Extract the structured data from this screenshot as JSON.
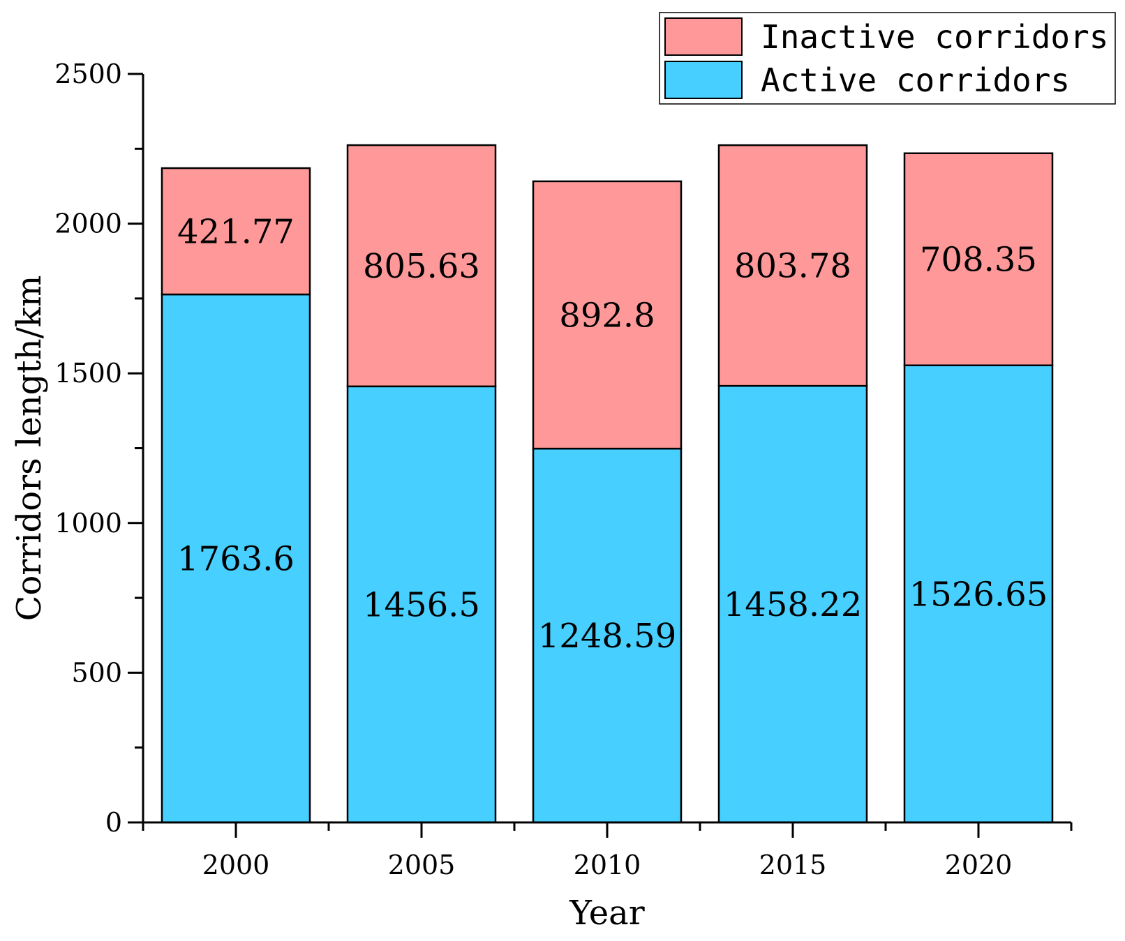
{
  "chart_data": {
    "type": "bar",
    "stacked": true,
    "categories": [
      "2000",
      "2005",
      "2010",
      "2015",
      "2020"
    ],
    "series": [
      {
        "name": "Active corridors",
        "color": "#47CFFF",
        "values": [
          1763.6,
          1456.5,
          1248.59,
          1458.22,
          1526.65
        ],
        "labels": [
          "1763.6",
          "1456.5",
          "1248.59",
          "1458.22",
          "1526.65"
        ]
      },
      {
        "name": "Inactive corridors",
        "color": "#FF9999",
        "values": [
          421.77,
          805.63,
          892.8,
          803.78,
          708.35
        ],
        "labels": [
          "421.77",
          "805.63",
          "892.8",
          "803.78",
          "708.35"
        ]
      }
    ],
    "legend_order": [
      "Inactive corridors",
      "Active corridors"
    ],
    "title": "",
    "xlabel": "Year",
    "ylabel": "Corridors length/km",
    "ylim": [
      0,
      2500
    ],
    "yticks": [
      0,
      500,
      1000,
      1500,
      2000,
      2500
    ],
    "ytick_labels": [
      "0",
      "500",
      "1000",
      "1500",
      "2000",
      "2500"
    ],
    "grid": false,
    "legend_position": "top-right"
  }
}
